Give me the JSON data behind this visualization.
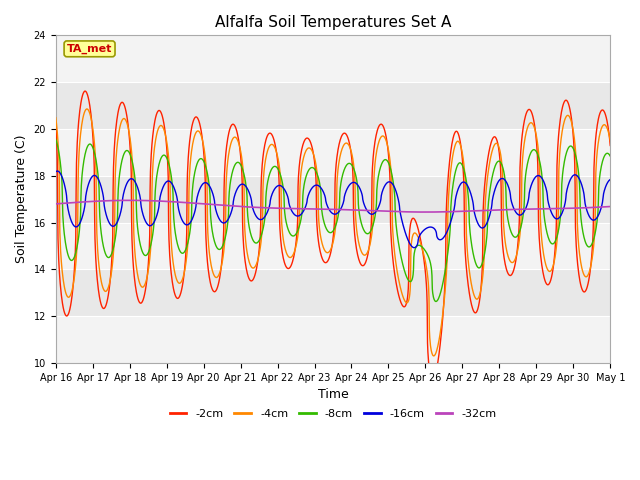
{
  "title": "Alfalfa Soil Temperatures Set A",
  "xlabel": "Time",
  "ylabel": "Soil Temperature (C)",
  "ylim": [
    10,
    24
  ],
  "yticks": [
    10,
    12,
    14,
    16,
    18,
    20,
    22,
    24
  ],
  "plot_bg_color": "#e8e8e8",
  "grid_color": "#ffffff",
  "line_colors": {
    "-2cm": "#ff2200",
    "-4cm": "#ff8800",
    "-8cm": "#33bb00",
    "-16cm": "#0000dd",
    "-32cm": "#bb44bb"
  },
  "legend_labels": [
    "-2cm",
    "-4cm",
    "-8cm",
    "-16cm",
    "-32cm"
  ],
  "ta_met_label": "TA_met",
  "annotation_box_color": "#ffff99",
  "annotation_text_color": "#cc0000",
  "annotation_box_edge": "#999900",
  "start_day": 16
}
